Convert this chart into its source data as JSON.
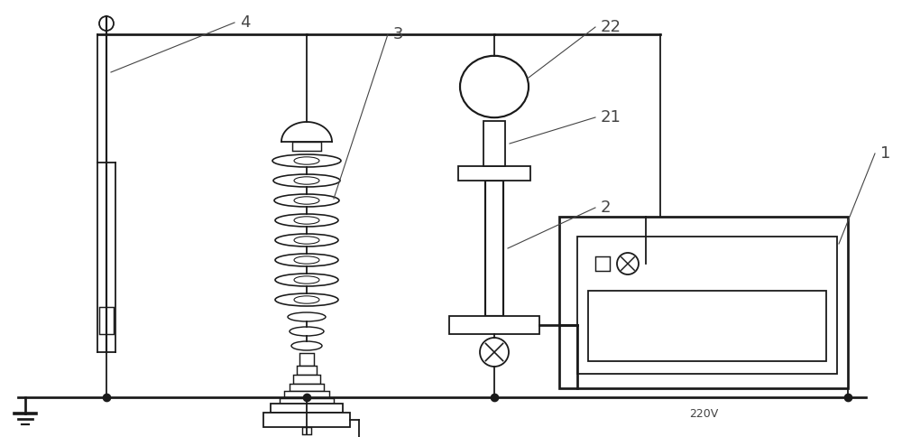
{
  "bg_color": "#ffffff",
  "line_color": "#1a1a1a",
  "label_color": "#444444",
  "fig_width": 10.0,
  "fig_height": 4.84,
  "dpi": 100
}
